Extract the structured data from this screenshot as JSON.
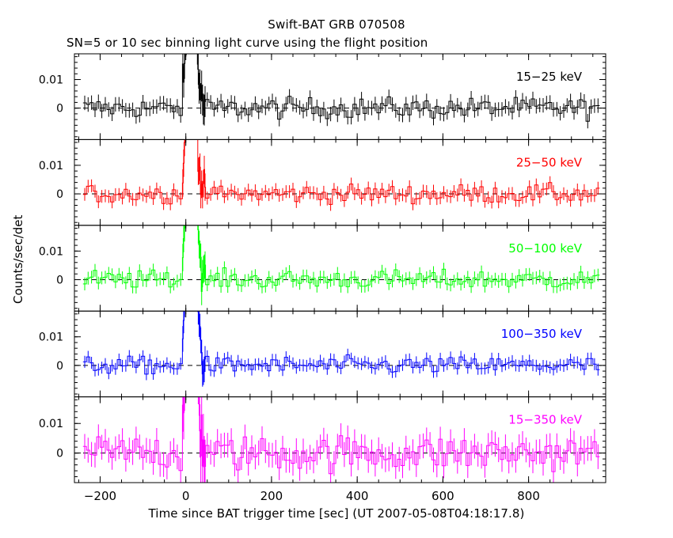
{
  "chart_data": {
    "type": "line",
    "title": "Swift-BAT GRB 070508",
    "subtitle": "SN=5 or 10 sec binning light curve using the flight position",
    "xlabel": "Time since BAT trigger time [sec] (UT 2007-05-08T04:18:17.8)",
    "ylabel": "Counts/sec/det",
    "xlim": [
      -260,
      980
    ],
    "xticks": [
      -200,
      0,
      200,
      400,
      600,
      800
    ],
    "xtick_labels": [
      "−200",
      "0",
      "200",
      "400",
      "600",
      "800"
    ],
    "yticks": [
      0,
      0.01
    ],
    "ytick_labels": [
      "0",
      "0.01"
    ],
    "zero_line": "dashed",
    "panels": [
      {
        "name": "15−25 keV",
        "color": "#000000",
        "ylim": [
          -0.011,
          0.019
        ],
        "noise": 0.0018,
        "peak": 0.055
      },
      {
        "name": "25−50 keV",
        "color": "#ff0000",
        "ylim": [
          -0.011,
          0.019
        ],
        "noise": 0.0016,
        "peak": 0.06
      },
      {
        "name": "50−100 keV",
        "color": "#00ff00",
        "ylim": [
          -0.011,
          0.019
        ],
        "noise": 0.0016,
        "peak": 0.07
      },
      {
        "name": "100−350 keV",
        "color": "#0000ff",
        "ylim": [
          -0.011,
          0.019
        ],
        "noise": 0.0015,
        "peak": 0.08
      },
      {
        "name": "15−350 keV",
        "color": "#ff00ff",
        "ylim": [
          -0.01,
          0.019
        ],
        "noise": 0.003,
        "peak": 0.1
      }
    ]
  }
}
